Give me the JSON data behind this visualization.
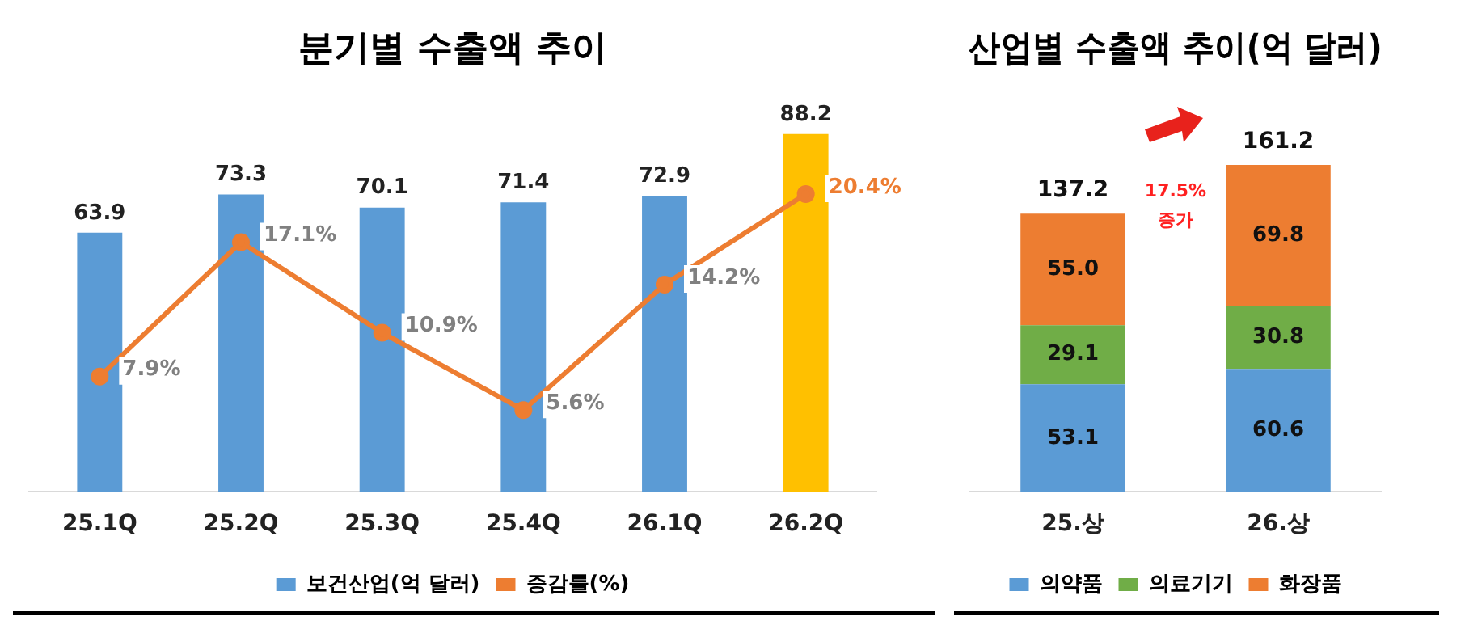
{
  "chart_data": [
    {
      "type": "bar",
      "title": "분기별 수출액 추이",
      "categories": [
        "25.1Q",
        "25.2Q",
        "25.3Q",
        "25.4Q",
        "26.1Q",
        "26.2Q"
      ],
      "series": [
        {
          "name": "보건산업(억 달러)",
          "color": "#5b9bd5",
          "colors": [
            "#5b9bd5",
            "#5b9bd5",
            "#5b9bd5",
            "#5b9bd5",
            "#5b9bd5",
            "#ffc000"
          ],
          "values": [
            63.9,
            73.3,
            70.1,
            71.4,
            72.9,
            88.2
          ],
          "value_labels": [
            "63.9",
            "73.3",
            "70.1",
            "71.4",
            "72.9",
            "88.2"
          ]
        },
        {
          "name": "증감률(%)",
          "type": "line",
          "axis": "y2",
          "color": "#ed7d31",
          "values": [
            7.9,
            17.1,
            10.9,
            5.6,
            14.2,
            20.4
          ],
          "value_labels": [
            "7.9%",
            "17.1%",
            "10.9%",
            "5.6%",
            "14.2%",
            "20.4%"
          ]
        }
      ],
      "marker": "circle",
      "tick_labels": "x",
      "legend": "bottom"
    },
    {
      "type": "bar",
      "title": "산업별 수출액 추이(억 달러)",
      "categories": [
        "25.상",
        "26.상"
      ],
      "stacked": true,
      "series": [
        {
          "name": "의약품",
          "color": "#5b9bd5",
          "values": [
            53.1,
            60.6
          ],
          "value_labels": [
            "53.1",
            "60.6"
          ]
        },
        {
          "name": "의료기기",
          "color": "#70ad47",
          "values": [
            29.1,
            30.8
          ],
          "value_labels": [
            "29.1",
            "30.8"
          ]
        },
        {
          "name": "화장품",
          "color": "#ed7d31",
          "values": [
            55.0,
            69.8
          ],
          "value_labels": [
            "55.0",
            "69.8"
          ]
        }
      ],
      "totals": [
        "137.2",
        "161.2"
      ],
      "annotations": [
        "17.5% 증가"
      ],
      "tick_labels": "x",
      "legend": "bottom"
    }
  ]
}
